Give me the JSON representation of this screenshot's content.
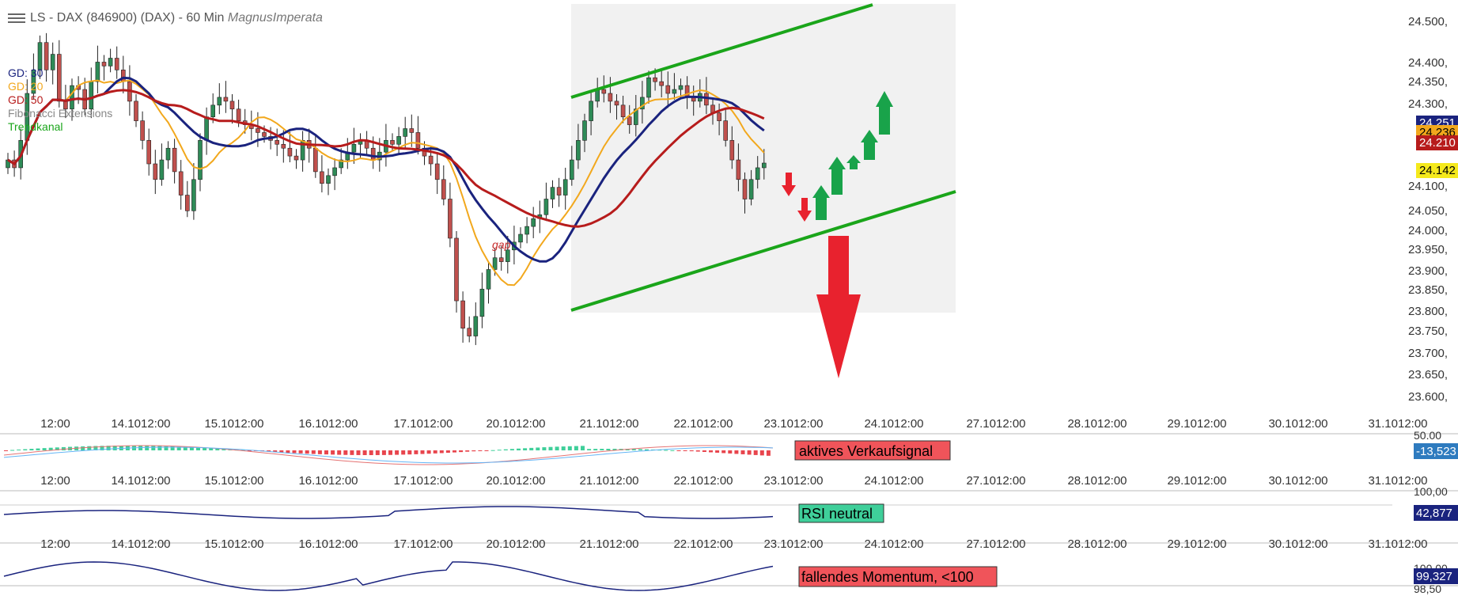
{
  "header": {
    "title": "LS - DAX (846900) (DAX) - 60 Min",
    "author": "MagnusImperata"
  },
  "legend": [
    {
      "label": "GD: 30",
      "color": "#1a237e"
    },
    {
      "label": "GD: 20",
      "color": "#f2a81d"
    },
    {
      "label": "GD: 50",
      "color": "#b71c1c"
    },
    {
      "label": "Fibonacci Extensions",
      "color": "#888888"
    },
    {
      "label": "Trendkanal",
      "color": "#1aa51a"
    }
  ],
  "chart_data": [
    {
      "type": "line",
      "panel": "price",
      "x_ticks": [
        "12:00",
        "14.1012:00",
        "15.1012:00",
        "16.1012:00",
        "17.1012:00",
        "20.1012:00",
        "21.1012:00",
        "22.1012:00",
        "23.1012:00",
        "24.1012:00",
        "27.1012:00",
        "28.1012:00",
        "29.1012:00",
        "30.1012:00",
        "31.1012:00"
      ],
      "y_ticks": [
        "24.500,",
        "24.400,",
        "24.350,",
        "24.300,",
        "24.100,",
        "24.050,",
        "24.000,",
        "23.950,",
        "23.900,",
        "23.850,",
        "23.800,",
        "23.750,",
        "23.700,",
        "23.650,",
        "23.600,"
      ],
      "ylim": [
        23570,
        24540
      ],
      "price_labels": [
        {
          "value": 24251,
          "text": "24.251",
          "bg": "#1a237e",
          "fg": "#ffffff"
        },
        {
          "value": 24236,
          "text": "24.236",
          "bg": "#f2a81d",
          "fg": "#000000"
        },
        {
          "value": 24210,
          "text": "24.210",
          "bg": "#b71c1c",
          "fg": "#ffffff"
        },
        {
          "value": 24142,
          "text": "24.142",
          "bg": "#f5e91c",
          "fg": "#000000"
        }
      ],
      "candles": [
        24150,
        24130,
        24200,
        24320,
        24380,
        24450,
        24380,
        24420,
        24300,
        24280,
        24340,
        24330,
        24280,
        24350,
        24400,
        24390,
        24410,
        24380,
        24350,
        24300,
        24250,
        24200,
        24140,
        24100,
        24150,
        24180,
        24120,
        24060,
        24020,
        24100,
        24200,
        24260,
        24290,
        24310,
        24300,
        24280,
        24250,
        24240,
        24230,
        24220,
        24210,
        24200,
        24190,
        24180,
        24160,
        24150,
        24200,
        24180,
        24120,
        24090,
        24110,
        24130,
        24150,
        24170,
        24190,
        24200,
        24180,
        24150,
        24170,
        24200,
        24190,
        24210,
        24230,
        24220,
        24180,
        24160,
        24140,
        24100,
        24050,
        23950,
        23790,
        23720,
        23700,
        23750,
        23820,
        23870,
        23900,
        23890,
        23920,
        23940,
        23960,
        23980,
        24000,
        24010,
        24050,
        24080,
        24060,
        24100,
        24150,
        24200,
        24250,
        24300,
        24330,
        24320,
        24300,
        24290,
        24260,
        24240,
        24280,
        24310,
        24360,
        24350,
        24340,
        24320,
        24330,
        24340,
        24310,
        24300,
        24320,
        24290,
        24270,
        24250,
        24200,
        24150,
        24100,
        24050,
        24100,
        24130,
        24142
      ],
      "annotations": [
        "gap"
      ],
      "series": [
        {
          "name": "GD: 30",
          "color": "#1a237e"
        },
        {
          "name": "GD: 20",
          "color": "#f2a81d"
        },
        {
          "name": "GD: 50",
          "color": "#b71c1c"
        },
        {
          "name": "Trendkanal",
          "color": "#1aa51a"
        }
      ]
    },
    {
      "type": "bar",
      "panel": "macd",
      "y_ticks": [
        "50.00"
      ],
      "value_label": {
        "text": "-13,523",
        "bg": "#2e7bbf",
        "fg": "#ffffff"
      },
      "signal_text": "aktives Verkaufsignal",
      "signal_bg": "#f0545a"
    },
    {
      "type": "line",
      "panel": "rsi",
      "y_ticks": [
        "100,00"
      ],
      "value_label": {
        "text": "42,877",
        "bg": "#1a237e",
        "fg": "#ffffff"
      },
      "signal_text": "RSI neutral",
      "signal_bg": "#3fcf9a"
    },
    {
      "type": "line",
      "panel": "momentum",
      "y_ticks": [
        "100,00",
        "98,50"
      ],
      "value_label": {
        "text": "99,327",
        "bg": "#1a237e",
        "fg": "#ffffff"
      },
      "signal_text": "fallendes Momentum, <100",
      "signal_bg": "#f0545a"
    }
  ]
}
